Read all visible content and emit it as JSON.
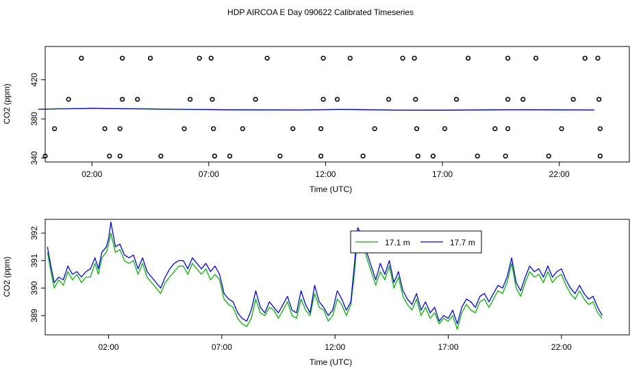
{
  "title": "HDP AIRCOA E  Day 090622  Calibrated Timeseries",
  "colors": {
    "green": "#00b400",
    "blue": "#0000dc",
    "axis": "#000000"
  },
  "chart_data": [
    {
      "type": "scatter+line",
      "xlabel": "Time (UTC)",
      "ylabel": "CO2 (ppm)",
      "xlim": [
        0.0,
        25.0
      ],
      "ylim": [
        336,
        454
      ],
      "xticks": [
        2,
        7,
        12,
        17,
        22
      ],
      "xtick_labels": [
        "02:00",
        "07:00",
        "12:00",
        "17:00",
        "22:00"
      ],
      "yticks": [
        340,
        380,
        420
      ],
      "ytick_labels": [
        "340",
        "380",
        "420"
      ],
      "calibration_points": [
        {
          "x": 1.55,
          "y": 442
        },
        {
          "x": 3.3,
          "y": 442
        },
        {
          "x": 4.5,
          "y": 442
        },
        {
          "x": 6.6,
          "y": 442
        },
        {
          "x": 7.1,
          "y": 442
        },
        {
          "x": 9.5,
          "y": 442
        },
        {
          "x": 11.9,
          "y": 442
        },
        {
          "x": 13.05,
          "y": 442
        },
        {
          "x": 15.3,
          "y": 442
        },
        {
          "x": 15.8,
          "y": 442
        },
        {
          "x": 18.1,
          "y": 442
        },
        {
          "x": 19.8,
          "y": 442
        },
        {
          "x": 21.0,
          "y": 442
        },
        {
          "x": 23.1,
          "y": 442
        },
        {
          "x": 23.65,
          "y": 442
        },
        {
          "x": 1.0,
          "y": 400
        },
        {
          "x": 3.3,
          "y": 400
        },
        {
          "x": 3.95,
          "y": 400
        },
        {
          "x": 6.2,
          "y": 400
        },
        {
          "x": 7.15,
          "y": 400
        },
        {
          "x": 9.0,
          "y": 400
        },
        {
          "x": 11.9,
          "y": 400
        },
        {
          "x": 12.5,
          "y": 400
        },
        {
          "x": 14.7,
          "y": 400
        },
        {
          "x": 15.85,
          "y": 400
        },
        {
          "x": 17.6,
          "y": 400
        },
        {
          "x": 19.8,
          "y": 400
        },
        {
          "x": 20.45,
          "y": 400
        },
        {
          "x": 22.6,
          "y": 400
        },
        {
          "x": 23.7,
          "y": 400
        },
        {
          "x": 0.4,
          "y": 370
        },
        {
          "x": 2.55,
          "y": 370
        },
        {
          "x": 3.2,
          "y": 370
        },
        {
          "x": 5.95,
          "y": 370
        },
        {
          "x": 7.2,
          "y": 370
        },
        {
          "x": 8.45,
          "y": 370
        },
        {
          "x": 10.6,
          "y": 370
        },
        {
          "x": 11.8,
          "y": 370
        },
        {
          "x": 14.1,
          "y": 370
        },
        {
          "x": 15.9,
          "y": 370
        },
        {
          "x": 17.1,
          "y": 370
        },
        {
          "x": 19.25,
          "y": 370
        },
        {
          "x": 19.8,
          "y": 370
        },
        {
          "x": 22.1,
          "y": 370
        },
        {
          "x": 23.75,
          "y": 370
        },
        {
          "x": 0.0,
          "y": 342
        },
        {
          "x": 2.75,
          "y": 342
        },
        {
          "x": 3.2,
          "y": 342
        },
        {
          "x": 4.95,
          "y": 342
        },
        {
          "x": 7.25,
          "y": 342
        },
        {
          "x": 7.9,
          "y": 342
        },
        {
          "x": 10.05,
          "y": 342
        },
        {
          "x": 11.8,
          "y": 342
        },
        {
          "x": 13.6,
          "y": 342
        },
        {
          "x": 15.95,
          "y": 342
        },
        {
          "x": 16.6,
          "y": 342
        },
        {
          "x": 18.5,
          "y": 342
        },
        {
          "x": 19.7,
          "y": 342
        },
        {
          "x": 21.55,
          "y": 342
        },
        {
          "x": 23.75,
          "y": 342
        }
      ],
      "series": [
        {
          "name": "17.1 m",
          "color": "#00b400",
          "x": [
            -0.3,
            2.0,
            5.0,
            8.0,
            11.0,
            12.7,
            15.0,
            17.0,
            20.0,
            23.5
          ],
          "y": [
            389.8,
            390.8,
            389.9,
            389.2,
            389.0,
            389.6,
            388.9,
            388.8,
            389.3,
            389.0
          ]
        },
        {
          "name": "17.7 m",
          "color": "#0000dc",
          "x": [
            -0.3,
            2.0,
            5.0,
            8.0,
            11.0,
            12.7,
            15.0,
            17.0,
            20.0,
            23.5
          ],
          "y": [
            389.8,
            390.9,
            390.0,
            389.3,
            389.1,
            389.7,
            389.0,
            388.9,
            389.4,
            389.1
          ]
        }
      ]
    },
    {
      "type": "line",
      "xlabel": "Time (UTC)",
      "ylabel": "CO2 (ppm)",
      "xlim": [
        -0.8,
        25.0
      ],
      "ylim": [
        388.3,
        392.5
      ],
      "xticks": [
        2,
        7,
        12,
        17,
        22
      ],
      "xtick_labels": [
        "02:00",
        "07:00",
        "12:00",
        "17:00",
        "22:00"
      ],
      "yticks": [
        389,
        390,
        391,
        392
      ],
      "ytick_labels": [
        "389",
        "390",
        "391",
        "392"
      ],
      "legend_position": "top-center",
      "series": [
        {
          "name": "17.1 m",
          "color": "#00b400",
          "x": [
            -0.7,
            -0.55,
            -0.4,
            -0.2,
            0.0,
            0.2,
            0.4,
            0.6,
            0.8,
            1.0,
            1.2,
            1.4,
            1.55,
            1.7,
            1.9,
            2.0,
            2.1,
            2.3,
            2.5,
            2.7,
            2.9,
            3.1,
            3.3,
            3.5,
            3.7,
            3.9,
            4.1,
            4.3,
            4.5,
            4.7,
            4.9,
            5.1,
            5.3,
            5.5,
            5.7,
            5.9,
            6.1,
            6.3,
            6.5,
            6.7,
            6.9,
            7.1,
            7.3,
            7.5,
            7.7,
            7.9,
            8.1,
            8.3,
            8.5,
            8.7,
            8.9,
            9.1,
            9.3,
            9.5,
            9.7,
            9.9,
            10.1,
            10.3,
            10.5,
            10.7,
            10.9,
            11.1,
            11.3,
            11.5,
            11.7,
            11.9,
            12.1,
            12.3,
            12.5,
            12.7,
            12.85,
            13.0,
            13.2,
            13.4,
            13.6,
            13.8,
            14.0,
            14.2,
            14.4,
            14.6,
            14.8,
            15.0,
            15.2,
            15.4,
            15.6,
            15.8,
            16.0,
            16.2,
            16.4,
            16.6,
            16.8,
            17.0,
            17.2,
            17.4,
            17.6,
            17.8,
            18.0,
            18.2,
            18.4,
            18.6,
            18.8,
            19.0,
            19.2,
            19.4,
            19.6,
            19.8,
            20.0,
            20.2,
            20.4,
            20.6,
            20.8,
            21.0,
            21.2,
            21.4,
            21.6,
            21.8,
            22.0,
            22.2,
            22.4,
            22.6,
            22.8,
            23.0,
            23.2,
            23.4,
            23.6,
            23.8
          ],
          "y": [
            391.3,
            390.6,
            390.0,
            390.3,
            390.1,
            390.6,
            390.3,
            390.5,
            390.2,
            390.4,
            390.4,
            390.9,
            390.5,
            391.1,
            391.3,
            391.6,
            392.0,
            391.3,
            391.4,
            391.0,
            390.9,
            391.0,
            390.5,
            390.9,
            390.4,
            390.2,
            390.0,
            389.8,
            390.2,
            390.4,
            390.6,
            390.8,
            390.8,
            390.5,
            390.9,
            390.7,
            390.5,
            390.7,
            390.3,
            390.5,
            390.3,
            389.6,
            389.4,
            389.3,
            388.9,
            388.7,
            388.6,
            388.9,
            389.6,
            389.1,
            389.0,
            389.3,
            389.2,
            388.9,
            389.2,
            389.5,
            389.0,
            388.9,
            389.6,
            389.2,
            389.0,
            389.8,
            389.3,
            389.2,
            388.8,
            389.0,
            389.6,
            389.4,
            389.0,
            389.4,
            390.5,
            391.9,
            391.7,
            391.1,
            390.6,
            390.1,
            390.6,
            390.3,
            390.8,
            390.0,
            390.4,
            389.7,
            389.4,
            389.2,
            389.6,
            389.0,
            389.3,
            388.9,
            389.1,
            388.7,
            388.9,
            388.8,
            389.0,
            388.5,
            389.1,
            389.4,
            389.2,
            389.1,
            389.5,
            389.6,
            389.3,
            389.6,
            389.9,
            389.8,
            390.2,
            390.9,
            390.0,
            389.7,
            390.2,
            390.6,
            390.4,
            390.5,
            390.2,
            390.6,
            390.2,
            390.4,
            390.5,
            390.1,
            389.8,
            389.6,
            389.9,
            389.6,
            389.4,
            389.5,
            389.1,
            388.9
          ]
        },
        {
          "name": "17.7 m",
          "color": "#0000dc",
          "x": [
            -0.7,
            -0.55,
            -0.4,
            -0.2,
            0.0,
            0.2,
            0.4,
            0.6,
            0.8,
            1.0,
            1.2,
            1.4,
            1.55,
            1.7,
            1.9,
            2.0,
            2.1,
            2.3,
            2.5,
            2.7,
            2.9,
            3.1,
            3.3,
            3.5,
            3.7,
            3.9,
            4.1,
            4.3,
            4.5,
            4.7,
            4.9,
            5.1,
            5.3,
            5.5,
            5.7,
            5.9,
            6.1,
            6.3,
            6.5,
            6.7,
            6.9,
            7.1,
            7.3,
            7.5,
            7.7,
            7.9,
            8.1,
            8.3,
            8.5,
            8.7,
            8.9,
            9.1,
            9.3,
            9.5,
            9.7,
            9.9,
            10.1,
            10.3,
            10.5,
            10.7,
            10.9,
            11.1,
            11.3,
            11.5,
            11.7,
            11.9,
            12.1,
            12.3,
            12.5,
            12.7,
            12.85,
            13.0,
            13.2,
            13.4,
            13.6,
            13.8,
            14.0,
            14.2,
            14.4,
            14.6,
            14.8,
            15.0,
            15.2,
            15.4,
            15.6,
            15.8,
            16.0,
            16.2,
            16.4,
            16.6,
            16.8,
            17.0,
            17.2,
            17.4,
            17.6,
            17.8,
            18.0,
            18.2,
            18.4,
            18.6,
            18.8,
            19.0,
            19.2,
            19.4,
            19.6,
            19.8,
            20.0,
            20.2,
            20.4,
            20.6,
            20.8,
            21.0,
            21.2,
            21.4,
            21.6,
            21.8,
            22.0,
            22.2,
            22.4,
            22.6,
            22.8,
            23.0,
            23.2,
            23.4,
            23.6,
            23.8
          ],
          "y": [
            391.5,
            390.8,
            390.2,
            390.4,
            390.3,
            390.8,
            390.5,
            390.6,
            390.4,
            390.6,
            390.7,
            391.1,
            390.7,
            391.3,
            391.5,
            391.8,
            392.4,
            391.5,
            391.6,
            391.2,
            391.1,
            391.2,
            390.7,
            391.1,
            390.6,
            390.4,
            390.2,
            390.0,
            390.4,
            390.7,
            390.9,
            391.0,
            391.0,
            390.7,
            391.1,
            390.9,
            390.7,
            390.9,
            390.6,
            390.8,
            390.5,
            389.8,
            389.6,
            389.5,
            389.1,
            388.9,
            388.8,
            389.2,
            389.9,
            389.3,
            389.1,
            389.5,
            389.3,
            389.1,
            389.4,
            389.7,
            389.2,
            389.1,
            389.9,
            389.4,
            389.1,
            390.1,
            389.5,
            389.3,
            389.0,
            389.2,
            389.9,
            389.6,
            389.2,
            389.5,
            390.8,
            392.2,
            391.9,
            391.3,
            390.8,
            390.3,
            390.9,
            390.5,
            391.0,
            390.2,
            390.6,
            389.9,
            389.6,
            389.4,
            389.8,
            389.2,
            389.5,
            389.1,
            389.3,
            388.8,
            389.0,
            388.9,
            389.2,
            388.7,
            389.3,
            389.6,
            389.5,
            389.3,
            389.7,
            389.8,
            389.5,
            389.8,
            390.1,
            390.0,
            390.4,
            391.1,
            390.2,
            389.9,
            390.4,
            390.8,
            390.6,
            390.7,
            390.4,
            390.8,
            390.4,
            390.6,
            390.7,
            390.3,
            390.0,
            389.8,
            390.1,
            389.8,
            389.6,
            389.7,
            389.3,
            389.0
          ]
        }
      ]
    }
  ]
}
